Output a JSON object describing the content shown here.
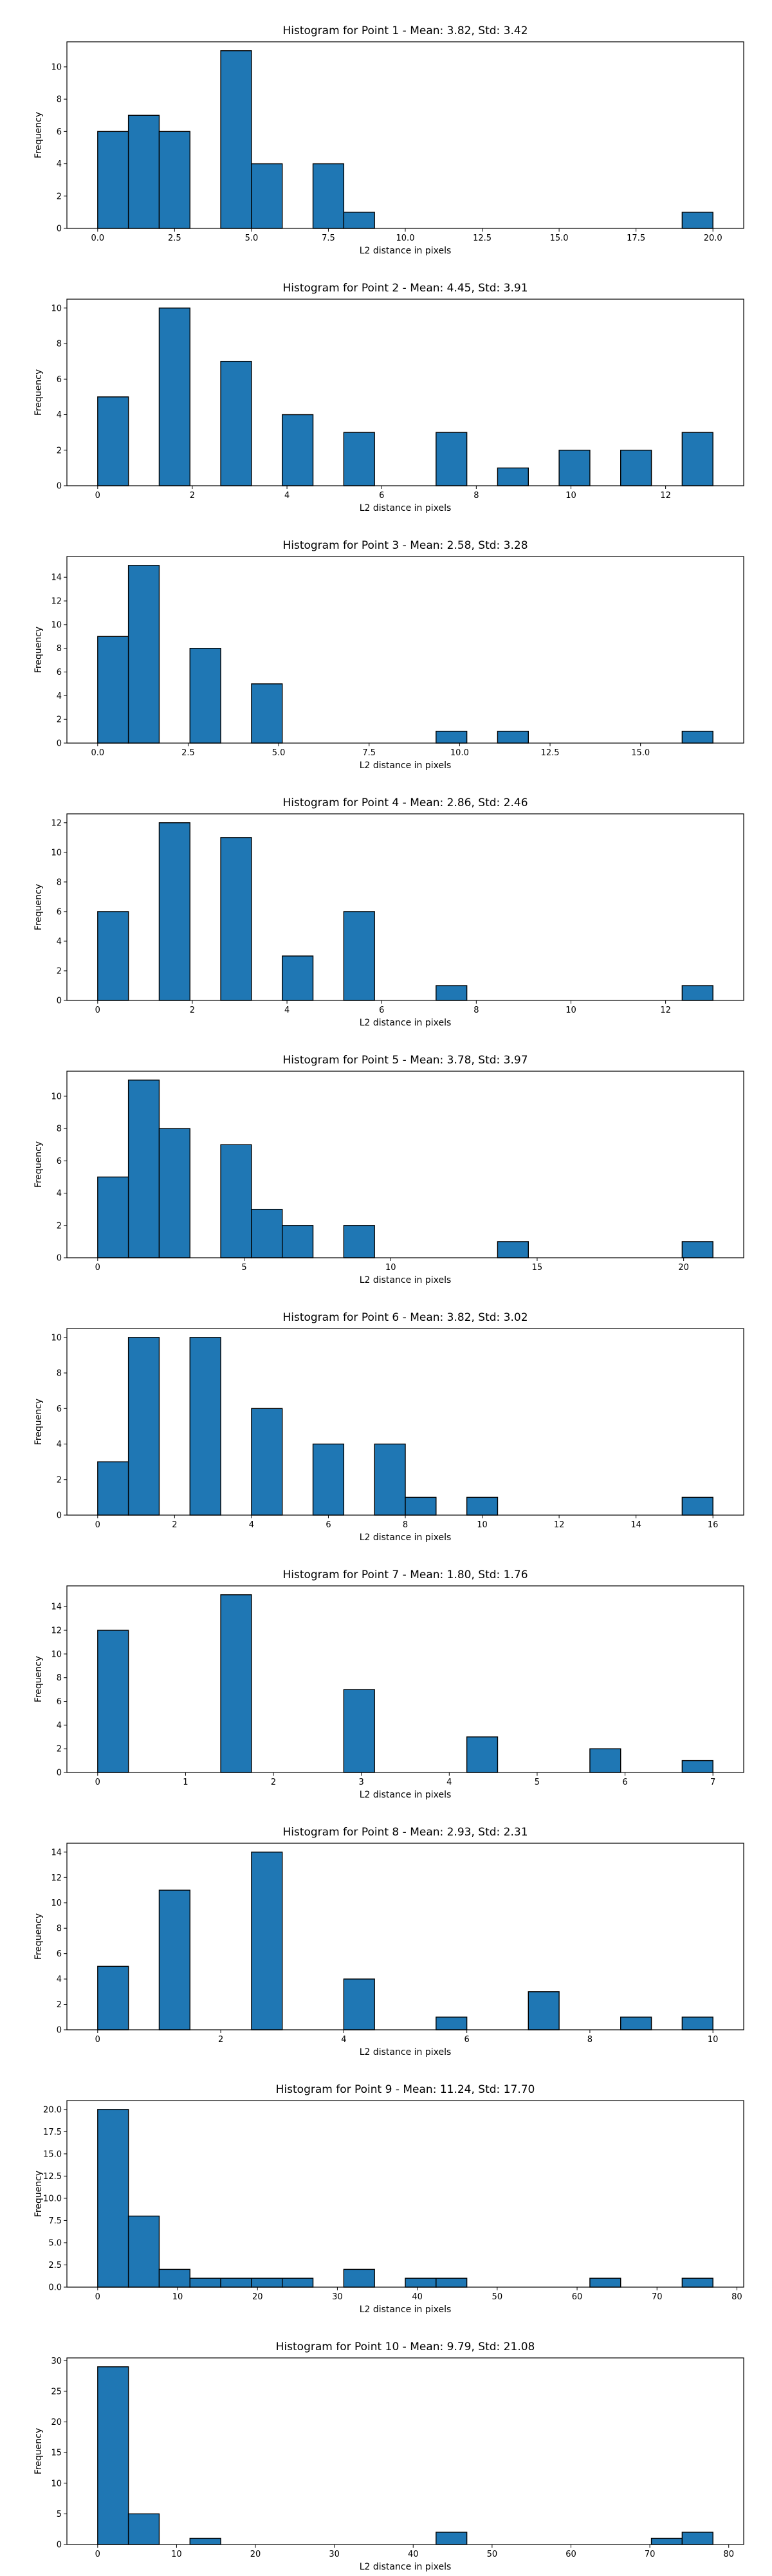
{
  "style": {
    "bar_color": "#1f77b4",
    "edge_color": "#000000",
    "axis_color": "#000000"
  },
  "chart_data": [
    {
      "type": "bar",
      "title": "Histogram for Point 1 - Mean: 3.82, Std: 3.42",
      "xlabel": "L2 distance in pixels",
      "ylabel": "Frequency",
      "xlim": [
        -1.0,
        21.0
      ],
      "ylim": [
        0,
        11.55
      ],
      "xticks": [
        0.0,
        2.5,
        5.0,
        7.5,
        10.0,
        12.5,
        15.0,
        17.5,
        20.0
      ],
      "xtick_labels": [
        "0.0",
        "2.5",
        "5.0",
        "7.5",
        "10.0",
        "12.5",
        "15.0",
        "17.5",
        "20.0"
      ],
      "yticks": [
        0,
        2,
        4,
        6,
        8,
        10
      ],
      "ytick_labels": [
        "0",
        "2",
        "4",
        "6",
        "8",
        "10"
      ],
      "bin_edges": [
        0.0,
        1.0,
        2.0,
        3.0,
        4.0,
        5.0,
        6.0,
        7.0,
        8.0,
        9.0,
        10.0,
        11.0,
        12.0,
        13.0,
        14.0,
        15.0,
        16.0,
        17.0,
        18.0,
        19.0,
        20.0
      ],
      "counts": [
        6,
        7,
        6,
        0,
        11,
        4,
        0,
        4,
        1,
        0,
        0,
        0,
        0,
        0,
        0,
        0,
        0,
        0,
        0,
        1
      ]
    },
    {
      "type": "bar",
      "title": "Histogram for Point 2 - Mean: 4.45, Std: 3.91",
      "xlabel": "L2 distance in pixels",
      "ylabel": "Frequency",
      "xlim": [
        -0.65,
        13.65
      ],
      "ylim": [
        0,
        10.5
      ],
      "xticks": [
        0,
        2,
        4,
        6,
        8,
        10,
        12
      ],
      "xtick_labels": [
        "0",
        "2",
        "4",
        "6",
        "8",
        "10",
        "12"
      ],
      "yticks": [
        0,
        2,
        4,
        6,
        8,
        10
      ],
      "ytick_labels": [
        "0",
        "2",
        "4",
        "6",
        "8",
        "10"
      ],
      "bin_edges": [
        0.0,
        0.65,
        1.3,
        1.95,
        2.6,
        3.25,
        3.9,
        4.55,
        5.2,
        5.85,
        6.5,
        7.15,
        7.8,
        8.45,
        9.1,
        9.75,
        10.4,
        11.05,
        11.7,
        12.35,
        13.0
      ],
      "counts": [
        5,
        0,
        10,
        0,
        7,
        0,
        4,
        0,
        3,
        0,
        0,
        3,
        0,
        1,
        0,
        2,
        0,
        2,
        0,
        3
      ]
    },
    {
      "type": "bar",
      "title": "Histogram for Point 3 - Mean: 2.58, Std: 3.28",
      "xlabel": "L2 distance in pixels",
      "ylabel": "Frequency",
      "xlim": [
        -0.85,
        17.85
      ],
      "ylim": [
        0,
        15.75
      ],
      "xticks": [
        0.0,
        2.5,
        5.0,
        7.5,
        10.0,
        12.5,
        15.0
      ],
      "xtick_labels": [
        "0.0",
        "2.5",
        "5.0",
        "7.5",
        "10.0",
        "12.5",
        "15.0"
      ],
      "yticks": [
        0,
        2,
        4,
        6,
        8,
        10,
        12,
        14
      ],
      "ytick_labels": [
        "0",
        "2",
        "4",
        "6",
        "8",
        "10",
        "12",
        "14"
      ],
      "bin_edges": [
        0.0,
        0.85,
        1.7,
        2.55,
        3.4,
        4.25,
        5.1,
        5.95,
        6.8,
        7.65,
        8.5,
        9.35,
        10.2,
        11.05,
        11.9,
        12.75,
        13.6,
        14.45,
        15.3,
        16.15,
        17.0
      ],
      "counts": [
        9,
        15,
        0,
        8,
        0,
        5,
        0,
        0,
        0,
        0,
        0,
        1,
        0,
        1,
        0,
        0,
        0,
        0,
        0,
        1
      ]
    },
    {
      "type": "bar",
      "title": "Histogram for Point 4 - Mean: 2.86, Std: 2.46",
      "xlabel": "L2 distance in pixels",
      "ylabel": "Frequency",
      "xlim": [
        -0.65,
        13.65
      ],
      "ylim": [
        0,
        12.6
      ],
      "xticks": [
        0,
        2,
        4,
        6,
        8,
        10,
        12
      ],
      "xtick_labels": [
        "0",
        "2",
        "4",
        "6",
        "8",
        "10",
        "12"
      ],
      "yticks": [
        0,
        2,
        4,
        6,
        8,
        10,
        12
      ],
      "ytick_labels": [
        "0",
        "2",
        "4",
        "6",
        "8",
        "10",
        "12"
      ],
      "bin_edges": [
        0.0,
        0.65,
        1.3,
        1.95,
        2.6,
        3.25,
        3.9,
        4.55,
        5.2,
        5.85,
        6.5,
        7.15,
        7.8,
        8.45,
        9.1,
        9.75,
        10.4,
        11.05,
        11.7,
        12.35,
        13.0
      ],
      "counts": [
        6,
        0,
        12,
        0,
        11,
        0,
        3,
        0,
        6,
        0,
        0,
        1,
        0,
        0,
        0,
        0,
        0,
        0,
        0,
        1
      ]
    },
    {
      "type": "bar",
      "title": "Histogram for Point 5 - Mean: 3.78, Std: 3.97",
      "xlabel": "L2 distance in pixels",
      "ylabel": "Frequency",
      "xlim": [
        -1.05,
        22.05
      ],
      "ylim": [
        0,
        11.55
      ],
      "xticks": [
        0,
        5,
        10,
        15,
        20
      ],
      "xtick_labels": [
        "0",
        "5",
        "10",
        "15",
        "20"
      ],
      "yticks": [
        0,
        2,
        4,
        6,
        8,
        10
      ],
      "ytick_labels": [
        "0",
        "2",
        "4",
        "6",
        "8",
        "10"
      ],
      "bin_edges": [
        0.0,
        1.05,
        2.1,
        3.15,
        4.2,
        5.25,
        6.3,
        7.35,
        8.4,
        9.45,
        10.5,
        11.55,
        12.6,
        13.65,
        14.7,
        15.75,
        16.8,
        17.85,
        18.9,
        19.95,
        21.0
      ],
      "counts": [
        5,
        11,
        8,
        0,
        7,
        3,
        2,
        0,
        2,
        0,
        0,
        0,
        0,
        1,
        0,
        0,
        0,
        0,
        0,
        1
      ]
    },
    {
      "type": "bar",
      "title": "Histogram for Point 6 - Mean: 3.82, Std: 3.02",
      "xlabel": "L2 distance in pixels",
      "ylabel": "Frequency",
      "xlim": [
        -0.8,
        16.8
      ],
      "ylim": [
        0,
        10.5
      ],
      "xticks": [
        0,
        2,
        4,
        6,
        8,
        10,
        12,
        14,
        16
      ],
      "xtick_labels": [
        "0",
        "2",
        "4",
        "6",
        "8",
        "10",
        "12",
        "14",
        "16"
      ],
      "yticks": [
        0,
        2,
        4,
        6,
        8,
        10
      ],
      "ytick_labels": [
        "0",
        "2",
        "4",
        "6",
        "8",
        "10"
      ],
      "bin_edges": [
        0.0,
        0.8,
        1.6,
        2.4,
        3.2,
        4.0,
        4.8,
        5.6,
        6.4,
        7.2,
        8.0,
        8.8,
        9.6,
        10.4,
        11.2,
        12.0,
        12.8,
        13.6,
        14.4,
        15.2,
        16.0
      ],
      "counts": [
        3,
        10,
        0,
        10,
        0,
        6,
        0,
        4,
        0,
        4,
        1,
        0,
        1,
        0,
        0,
        0,
        0,
        0,
        0,
        1
      ]
    },
    {
      "type": "bar",
      "title": "Histogram for Point 7 - Mean: 1.80, Std: 1.76",
      "xlabel": "L2 distance in pixels",
      "ylabel": "Frequency",
      "xlim": [
        -0.35,
        7.35
      ],
      "ylim": [
        0,
        15.75
      ],
      "xticks": [
        0,
        1,
        2,
        3,
        4,
        5,
        6,
        7
      ],
      "xtick_labels": [
        "0",
        "1",
        "2",
        "3",
        "4",
        "5",
        "6",
        "7"
      ],
      "yticks": [
        0,
        2,
        4,
        6,
        8,
        10,
        12,
        14
      ],
      "ytick_labels": [
        "0",
        "2",
        "4",
        "6",
        "8",
        "10",
        "12",
        "14"
      ],
      "bin_edges": [
        0.0,
        0.35,
        0.7,
        1.05,
        1.4,
        1.75,
        2.1,
        2.45,
        2.8,
        3.15,
        3.5,
        3.85,
        4.2,
        4.55,
        4.9,
        5.25,
        5.6,
        5.95,
        6.3,
        6.65,
        7.0
      ],
      "counts": [
        12,
        0,
        0,
        0,
        15,
        0,
        0,
        0,
        7,
        0,
        0,
        0,
        3,
        0,
        0,
        0,
        2,
        0,
        0,
        1
      ]
    },
    {
      "type": "bar",
      "title": "Histogram for Point 8 - Mean: 2.93, Std: 2.31",
      "xlabel": "L2 distance in pixels",
      "ylabel": "Frequency",
      "xlim": [
        -0.5,
        10.5
      ],
      "ylim": [
        0,
        14.7
      ],
      "xticks": [
        0,
        2,
        4,
        6,
        8,
        10
      ],
      "xtick_labels": [
        "0",
        "2",
        "4",
        "6",
        "8",
        "10"
      ],
      "yticks": [
        0,
        2,
        4,
        6,
        8,
        10,
        12,
        14
      ],
      "ytick_labels": [
        "0",
        "2",
        "4",
        "6",
        "8",
        "10",
        "12",
        "14"
      ],
      "bin_edges": [
        0.0,
        0.5,
        1.0,
        1.5,
        2.0,
        2.5,
        3.0,
        3.5,
        4.0,
        4.5,
        5.0,
        5.5,
        6.0,
        6.5,
        7.0,
        7.5,
        8.0,
        8.5,
        9.0,
        9.5,
        10.0
      ],
      "counts": [
        5,
        0,
        11,
        0,
        0,
        14,
        0,
        0,
        4,
        0,
        0,
        1,
        0,
        0,
        3,
        0,
        0,
        1,
        0,
        1
      ]
    },
    {
      "type": "bar",
      "title": "Histogram for Point 9 - Mean: 11.24, Std: 17.70",
      "xlabel": "L2 distance in pixels",
      "ylabel": "Frequency",
      "xlim": [
        -3.85,
        80.85
      ],
      "ylim": [
        0,
        21.0
      ],
      "xticks": [
        0,
        10,
        20,
        30,
        40,
        50,
        60,
        70,
        80
      ],
      "xtick_labels": [
        "0",
        "10",
        "20",
        "30",
        "40",
        "50",
        "60",
        "70",
        "80"
      ],
      "yticks": [
        0.0,
        2.5,
        5.0,
        7.5,
        10.0,
        12.5,
        15.0,
        17.5,
        20.0
      ],
      "ytick_labels": [
        "0.0",
        "2.5",
        "5.0",
        "7.5",
        "10.0",
        "12.5",
        "15.0",
        "17.5",
        "20.0"
      ],
      "bin_edges": [
        0.0,
        3.85,
        7.7,
        11.55,
        15.4,
        19.25,
        23.1,
        26.95,
        30.8,
        34.65,
        38.5,
        42.35,
        46.2,
        50.05,
        53.9,
        57.75,
        61.6,
        65.45,
        69.3,
        73.15,
        77.0
      ],
      "counts": [
        20,
        8,
        2,
        1,
        1,
        1,
        1,
        0,
        2,
        0,
        1,
        1,
        0,
        0,
        0,
        0,
        1,
        0,
        0,
        1
      ]
    },
    {
      "type": "bar",
      "title": "Histogram for Point 10 - Mean: 9.79, Std: 21.08",
      "xlabel": "L2 distance in pixels",
      "ylabel": "Frequency",
      "xlim": [
        -3.9,
        81.9
      ],
      "ylim": [
        0,
        30.45
      ],
      "xticks": [
        0,
        10,
        20,
        30,
        40,
        50,
        60,
        70,
        80
      ],
      "xtick_labels": [
        "0",
        "10",
        "20",
        "30",
        "40",
        "50",
        "60",
        "70",
        "80"
      ],
      "yticks": [
        0,
        5,
        10,
        15,
        20,
        25,
        30
      ],
      "ytick_labels": [
        "0",
        "5",
        "10",
        "15",
        "20",
        "25",
        "30"
      ],
      "bin_edges": [
        0.0,
        3.9,
        7.8,
        11.7,
        15.6,
        19.5,
        23.4,
        27.3,
        31.2,
        35.1,
        39.0,
        42.9,
        46.8,
        50.7,
        54.6,
        58.5,
        62.4,
        66.3,
        70.2,
        74.1,
        78.0
      ],
      "counts": [
        29,
        5,
        0,
        1,
        0,
        0,
        0,
        0,
        0,
        0,
        0,
        2,
        0,
        0,
        0,
        0,
        0,
        0,
        1,
        2
      ]
    }
  ]
}
